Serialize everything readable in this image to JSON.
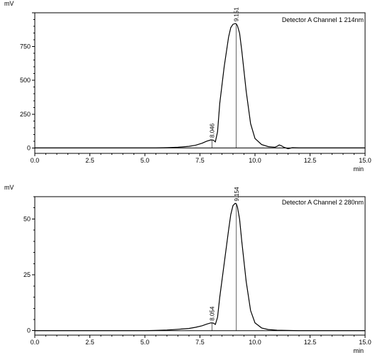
{
  "chart_data": [
    {
      "type": "line",
      "title": "Detector A Channel 1 214nm",
      "ylabel": "mV",
      "xlabel": "min",
      "xlim": [
        0.0,
        15.0
      ],
      "ylim": [
        -40,
        1000
      ],
      "x_ticks": [
        "0.0",
        "2.5",
        "5.0",
        "7.5",
        "10.0",
        "12.5",
        "15.0"
      ],
      "y_ticks": [
        "0",
        "250",
        "500",
        "750"
      ],
      "peaks": [
        {
          "rt": 8.046,
          "label": "8.046",
          "height": 60
        },
        {
          "rt": 9.151,
          "label": "9.151",
          "height": 920
        }
      ],
      "series": [
        {
          "x": [
            0,
            1,
            2,
            3,
            4,
            5,
            5.5,
            6,
            6.5,
            7,
            7.3,
            7.6,
            7.8,
            8.0,
            8.1,
            8.2,
            8.3,
            8.4,
            8.6,
            8.8,
            8.9,
            9.0,
            9.1,
            9.15,
            9.2,
            9.3,
            9.4,
            9.6,
            9.8,
            10.0,
            10.3,
            10.6,
            10.9,
            11.0,
            11.1,
            11.2,
            11.3,
            11.5,
            11.7,
            12,
            13,
            14,
            15
          ],
          "y": [
            0,
            0,
            0,
            0,
            0,
            0,
            0,
            2,
            5,
            12,
            20,
            35,
            50,
            60,
            58,
            45,
            120,
            330,
            600,
            820,
            890,
            915,
            920,
            918,
            905,
            850,
            720,
            420,
            180,
            70,
            25,
            10,
            5,
            12,
            22,
            16,
            6,
            -6,
            2,
            0,
            0,
            0,
            0
          ]
        }
      ]
    },
    {
      "type": "line",
      "title": "Detector A Channel 2 280nm",
      "ylabel": "mV",
      "xlabel": "min",
      "xlim": [
        0.0,
        15.0
      ],
      "ylim": [
        -2,
        60
      ],
      "x_ticks": [
        "0.0",
        "2.5",
        "5.0",
        "7.5",
        "10.0",
        "12.5",
        "15.0"
      ],
      "y_ticks": [
        "0",
        "25",
        "50"
      ],
      "peaks": [
        {
          "rt": 8.054,
          "label": "8.054",
          "height": 3.5
        },
        {
          "rt": 9.154,
          "label": "9.154",
          "height": 57
        }
      ],
      "series": [
        {
          "x": [
            0,
            1,
            2,
            3,
            4,
            5,
            5.5,
            6,
            6.5,
            7,
            7.3,
            7.6,
            7.8,
            8.0,
            8.1,
            8.2,
            8.3,
            8.4,
            8.6,
            8.8,
            8.9,
            9.0,
            9.1,
            9.15,
            9.2,
            9.3,
            9.4,
            9.6,
            9.8,
            10.0,
            10.3,
            10.6,
            11,
            12,
            13,
            14,
            15
          ],
          "y": [
            0,
            0,
            0,
            0,
            0,
            0,
            0.1,
            0.3,
            0.6,
            1.0,
            1.5,
            2.2,
            2.9,
            3.5,
            3.4,
            2.8,
            6,
            15,
            30,
            45,
            52,
            56,
            57,
            56.8,
            55.5,
            50,
            40,
            22,
            9,
            3.5,
            1.2,
            0.5,
            0.2,
            0,
            0,
            0,
            0
          ]
        }
      ]
    }
  ]
}
